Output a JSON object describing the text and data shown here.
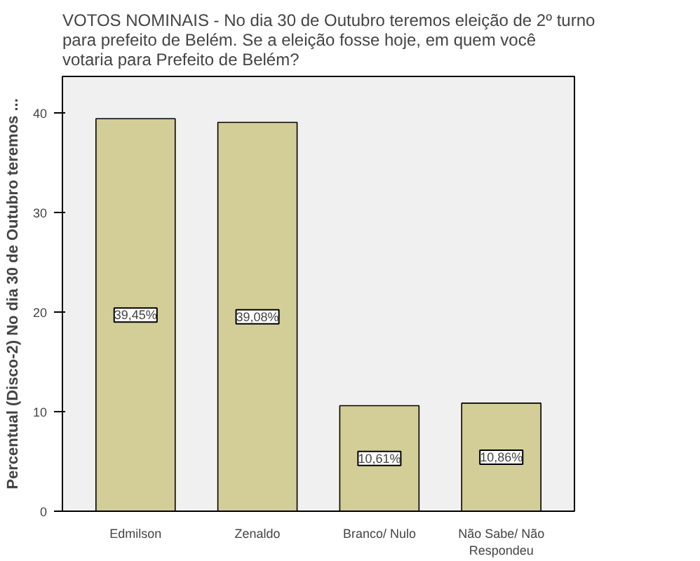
{
  "chart_data": {
    "type": "bar",
    "title": "VOTOS NOMINAIS -  No dia 30 de Outubro teremos eleição de 2º turno para prefeito de Belém. Se a eleição fosse hoje, em quem você votaria para Prefeito de Belém?",
    "ylabel": "Percentual (Disco-2) No dia 30 de Outubro teremos ...",
    "categories": [
      "Edmilson",
      "Zenaldo",
      "Branco/ Nulo",
      "Não Sabe/ Não Respondeu"
    ],
    "values": [
      39.45,
      39.08,
      10.61,
      10.86
    ],
    "value_labels": [
      "39,45%",
      "39,08%",
      "10,61%",
      "10,86%"
    ],
    "color": "#d3ce97",
    "ylim": [
      0,
      43.7
    ],
    "yticks": [
      0,
      10,
      20,
      30,
      40
    ],
    "grid": false
  }
}
